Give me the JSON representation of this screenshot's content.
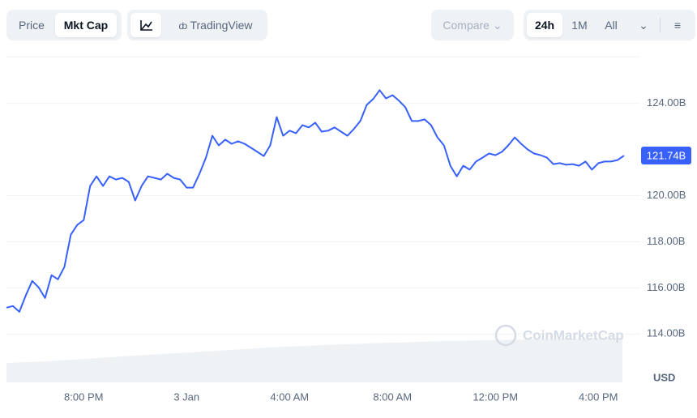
{
  "toolbar": {
    "tabs": [
      "Price",
      "Mkt Cap"
    ],
    "tradingview": "TradingView",
    "compare": "Compare",
    "ranges": [
      "24h",
      "1M",
      "All"
    ]
  },
  "chart_data": {
    "type": "line",
    "color": "#3861fb",
    "grid": true,
    "watermark": "CoinMarketCap",
    "unit_label": "USD",
    "current_value": 121.74,
    "current_value_label": "121.74B",
    "values": [
      115.14,
      115.21,
      114.96,
      115.67,
      116.3,
      116.02,
      115.56,
      116.55,
      116.37,
      116.9,
      118.31,
      118.73,
      118.94,
      120.42,
      120.84,
      120.42,
      120.84,
      120.7,
      120.77,
      120.6,
      119.79,
      120.42,
      120.84,
      120.77,
      120.7,
      120.95,
      120.77,
      120.7,
      120.35,
      120.35,
      120.95,
      121.65,
      122.6,
      122.18,
      122.43,
      122.25,
      122.36,
      122.25,
      122.08,
      121.9,
      121.72,
      122.18,
      123.41,
      122.6,
      122.82,
      122.71,
      123.06,
      122.96,
      123.17,
      122.78,
      122.82,
      122.96,
      122.78,
      122.6,
      122.89,
      123.24,
      123.94,
      124.19,
      124.58,
      124.22,
      124.36,
      124.12,
      123.84,
      123.24,
      123.24,
      123.31,
      123.06,
      122.53,
      122.18,
      121.3,
      120.84,
      121.3,
      121.13,
      121.48,
      121.65,
      121.83,
      121.76,
      121.9,
      122.18,
      122.53,
      122.25,
      122.01,
      121.83,
      121.76,
      121.65,
      121.37,
      121.41,
      121.34,
      121.37,
      121.3,
      121.48,
      121.13,
      121.41,
      121.48,
      121.48,
      121.55,
      121.74
    ],
    "xlim": [
      0,
      96
    ],
    "xticks": [
      {
        "value": 12,
        "label": "8:00 PM"
      },
      {
        "value": 28,
        "label": "3 Jan"
      },
      {
        "value": 44,
        "label": "4:00 AM"
      },
      {
        "value": 60,
        "label": "8:00 AM"
      },
      {
        "value": 76,
        "label": "12:00 PM"
      },
      {
        "value": 92,
        "label": "4:00 PM"
      }
    ],
    "ylim": [
      111.9,
      126.03
    ],
    "yticks": [
      {
        "value": 114,
        "label": "114.00B"
      },
      {
        "value": 116,
        "label": "116.00B"
      },
      {
        "value": 118,
        "label": "118.00B"
      },
      {
        "value": 120,
        "label": "120.00B"
      },
      {
        "value": 124,
        "label": "124.00B"
      }
    ]
  }
}
